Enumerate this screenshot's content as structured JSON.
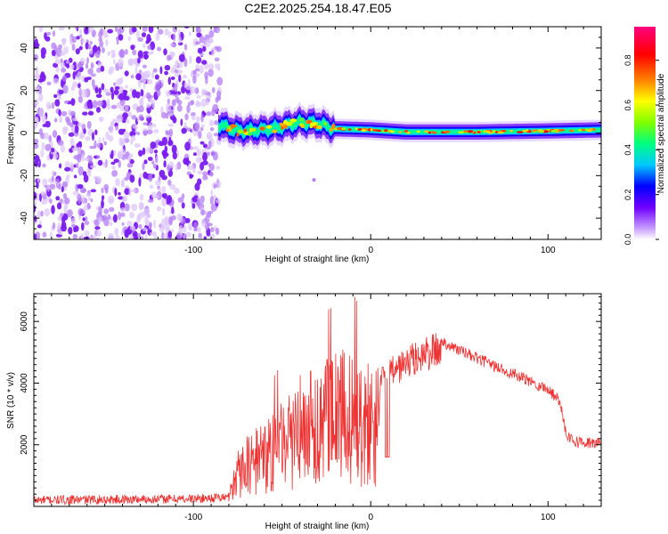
{
  "title": "C2E2.2025.254.18.47.E05",
  "chart_data": [
    {
      "type": "heatmap",
      "name": "spectrogram",
      "xlabel": "Height of straight line (km)",
      "ylabel": "Frequency (Hz)",
      "xlim": [
        -190,
        130
      ],
      "ylim": [
        -50,
        50
      ],
      "xticks": [
        -100,
        0,
        100
      ],
      "yticks": [
        40,
        20,
        0,
        -20,
        -40
      ],
      "noise_region_x": [
        -190,
        -85
      ],
      "signal_band": {
        "x_start": -86,
        "center_hz": [
          [
            -86,
            4
          ],
          [
            -75,
            1
          ],
          [
            -60,
            1.5
          ],
          [
            -50,
            3
          ],
          [
            -40,
            5
          ],
          [
            -30,
            4.5
          ],
          [
            -20,
            2
          ],
          [
            0,
            1.5
          ],
          [
            20,
            0.5
          ],
          [
            60,
            0.5
          ],
          [
            100,
            1
          ],
          [
            130,
            1.5
          ]
        ],
        "half_width_hz": 2
      },
      "colorbar": {
        "label": "Normalized spectral amplitude",
        "ticks": [
          0.0,
          0.2,
          0.4,
          0.6,
          0.8
        ],
        "range": [
          0,
          0.95
        ],
        "colors": [
          "#ffffff",
          "#c8a0ff",
          "#7000ff",
          "#0000ff",
          "#00c8ff",
          "#00ff80",
          "#80ff00",
          "#ffff00",
          "#ff8000",
          "#ff0000",
          "#ff0080"
        ]
      }
    },
    {
      "type": "line",
      "name": "snr",
      "xlabel": "Height of straight line (km)",
      "ylabel": "SNR (10 * v/v)",
      "xlim": [
        -190,
        130
      ],
      "ylim": [
        0,
        6900
      ],
      "xticks": [
        -100,
        0,
        100
      ],
      "yticks": [
        2000,
        4000,
        6000
      ],
      "color": "#ee3333",
      "envelope": {
        "x": [
          -190,
          -100,
          -80,
          -76,
          -70,
          -60,
          -50,
          -40,
          -30,
          -20,
          -12,
          -8,
          -5,
          0,
          5,
          10,
          20,
          30,
          38,
          45,
          60,
          80,
          100,
          107,
          110,
          115,
          125,
          130
        ],
        "y": [
          200,
          250,
          300,
          1500,
          1900,
          2400,
          3000,
          3600,
          4000,
          4200,
          4300,
          4300,
          4000,
          4100,
          4300,
          4600,
          5000,
          5300,
          5450,
          5200,
          4800,
          4300,
          3800,
          3400,
          2400,
          2100,
          2050,
          2050
        ]
      }
    }
  ]
}
